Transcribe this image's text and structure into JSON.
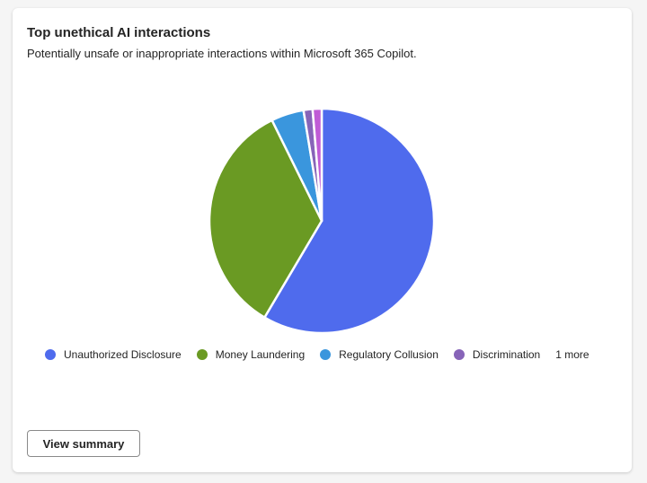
{
  "card": {
    "title": "Top unethical AI interactions",
    "subtitle": "Potentially unsafe or inappropriate interactions within Microsoft 365 Copilot.",
    "button_label": "View summary",
    "legend_more": "1 more"
  },
  "chart_data": {
    "type": "pie",
    "title": "Top unethical AI interactions",
    "legend_placement": "bottom",
    "slices": [
      {
        "name": "Unauthorized Disclosure",
        "value": 58.5,
        "color": "#4f6bed"
      },
      {
        "name": "Money Laundering",
        "value": 34.2,
        "color": "#6a9a23"
      },
      {
        "name": "Regulatory Collusion",
        "value": 4.7,
        "color": "#3a96dd"
      },
      {
        "name": "Discrimination",
        "value": 1.3,
        "color": "#8764b8"
      },
      {
        "value": 1.3,
        "color": "#c05bd6"
      }
    ]
  }
}
